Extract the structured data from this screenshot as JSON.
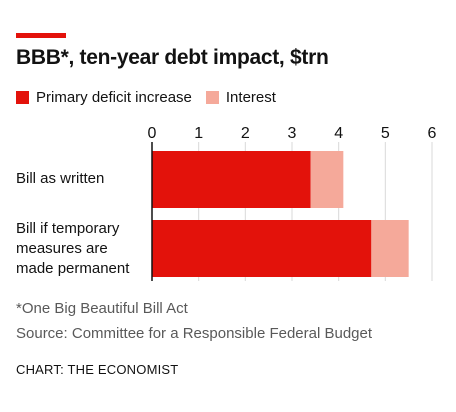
{
  "chart_data": {
    "type": "bar",
    "orientation": "horizontal",
    "stacked": true,
    "title": "BBB*, ten-year debt impact, $trn",
    "categories": [
      "Bill as written",
      "Bill if temporary measures are made permanent"
    ],
    "category_lines": [
      [
        "Bill as written"
      ],
      [
        "Bill if temporary",
        "measures are",
        "made permanent"
      ]
    ],
    "series": [
      {
        "name": "Primary deficit increase",
        "color": "#e3120b",
        "values": [
          3.4,
          4.7
        ]
      },
      {
        "name": "Interest",
        "color": "#f5a99a",
        "values": [
          0.7,
          0.8
        ]
      }
    ],
    "xticks": [
      "0",
      "1",
      "2",
      "3",
      "4",
      "5",
      "6"
    ],
    "xlim": [
      0,
      6
    ],
    "grid": true,
    "legend_position": "top-left"
  },
  "footnotes": {
    "note": "*One Big Beautiful Bill Act",
    "source": "Source: Committee for a Responsible Federal Budget"
  },
  "credit": "CHART: THE ECONOMIST",
  "colors": {
    "accent": "#e3120b",
    "gridline": "#d9d9d9"
  }
}
